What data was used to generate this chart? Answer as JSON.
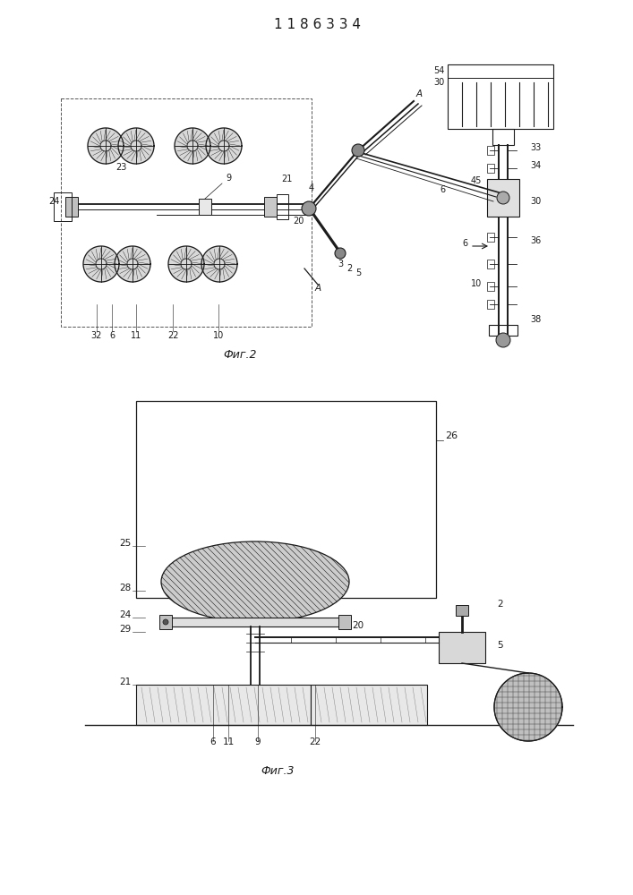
{
  "title": "1 1 8 6 3 3 4",
  "fig2_label": "Фиг.2",
  "fig3_label": "Фиг.3",
  "bg_color": "#ffffff",
  "lc": "#1a1a1a"
}
